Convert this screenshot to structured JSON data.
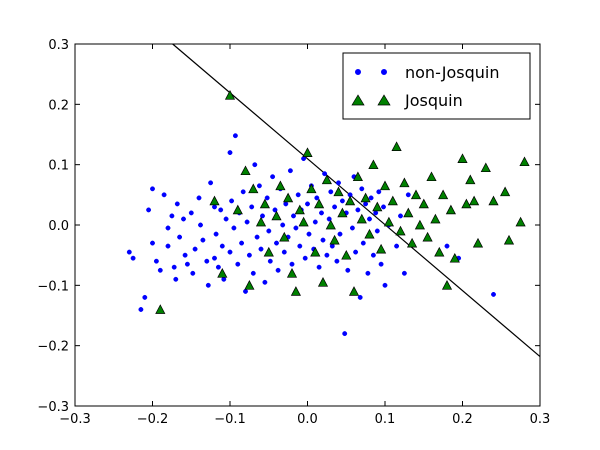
{
  "chart_data": {
    "type": "scatter",
    "xlim": [
      -0.3,
      0.3
    ],
    "ylim": [
      -0.3,
      0.3
    ],
    "x_ticks": [
      "−0.3",
      "−0.2",
      "−0.1",
      "0.0",
      "0.1",
      "0.2",
      "0.3"
    ],
    "y_ticks": [
      "−0.3",
      "−0.2",
      "−0.1",
      "0.0",
      "0.1",
      "0.2",
      "0.3"
    ],
    "x_tick_values": [
      -0.3,
      -0.2,
      -0.1,
      0.0,
      0.1,
      0.2,
      0.3
    ],
    "y_tick_values": [
      -0.3,
      -0.2,
      -0.1,
      0.0,
      0.1,
      0.2,
      0.3
    ],
    "grid": false,
    "legend_position": "top-right",
    "decision_boundary": {
      "x": [
        -0.174,
        0.3
      ],
      "y": [
        0.3,
        -0.218
      ],
      "color": "#000000"
    },
    "series": [
      {
        "name": "non-Josquin",
        "marker": "circle",
        "color": "#0000ff",
        "points": [
          [
            -0.23,
            -0.045
          ],
          [
            -0.225,
            -0.055
          ],
          [
            -0.215,
            -0.14
          ],
          [
            -0.21,
            -0.12
          ],
          [
            -0.205,
            0.025
          ],
          [
            -0.2,
            0.06
          ],
          [
            -0.2,
            -0.03
          ],
          [
            -0.195,
            -0.06
          ],
          [
            -0.19,
            -0.075
          ],
          [
            -0.185,
            0.05
          ],
          [
            -0.18,
            -0.035
          ],
          [
            -0.18,
            -0.005
          ],
          [
            -0.175,
            0.015
          ],
          [
            -0.172,
            -0.07
          ],
          [
            -0.17,
            -0.09
          ],
          [
            -0.168,
            0.035
          ],
          [
            -0.165,
            -0.02
          ],
          [
            -0.16,
            0.01
          ],
          [
            -0.158,
            -0.05
          ],
          [
            -0.155,
            -0.065
          ],
          [
            -0.15,
            0.02
          ],
          [
            -0.148,
            -0.08
          ],
          [
            -0.145,
            -0.04
          ],
          [
            -0.14,
            0.045
          ],
          [
            -0.138,
            0.0
          ],
          [
            -0.135,
            -0.025
          ],
          [
            -0.13,
            -0.06
          ],
          [
            -0.128,
            -0.1
          ],
          [
            -0.125,
            0.07
          ],
          [
            -0.12,
            0.03
          ],
          [
            -0.12,
            -0.055
          ],
          [
            -0.118,
            -0.015
          ],
          [
            -0.115,
            -0.07
          ],
          [
            -0.112,
            0.025
          ],
          [
            -0.11,
            -0.035
          ],
          [
            -0.108,
            -0.09
          ],
          [
            -0.105,
            0.01
          ],
          [
            -0.1,
            0.12
          ],
          [
            -0.1,
            -0.045
          ],
          [
            -0.098,
            0.04
          ],
          [
            -0.095,
            -0.005
          ],
          [
            -0.093,
            0.148
          ],
          [
            -0.09,
            -0.065
          ],
          [
            -0.088,
            0.02
          ],
          [
            -0.085,
            -0.03
          ],
          [
            -0.083,
            0.055
          ],
          [
            -0.08,
            -0.11
          ],
          [
            -0.078,
            0.005
          ],
          [
            -0.075,
            -0.05
          ],
          [
            -0.072,
            0.03
          ],
          [
            -0.07,
            -0.08
          ],
          [
            -0.068,
            0.1
          ],
          [
            -0.065,
            -0.02
          ],
          [
            -0.062,
            0.065
          ],
          [
            -0.06,
            -0.04
          ],
          [
            -0.058,
            0.015
          ],
          [
            -0.055,
            -0.095
          ],
          [
            -0.052,
            0.045
          ],
          [
            -0.05,
            -0.01
          ],
          [
            -0.048,
            -0.06
          ],
          [
            -0.045,
            0.08
          ],
          [
            -0.042,
            0.025
          ],
          [
            -0.04,
            -0.03
          ],
          [
            -0.038,
            -0.075
          ],
          [
            -0.035,
            0.06
          ],
          [
            -0.032,
            0.0
          ],
          [
            -0.03,
            -0.045
          ],
          [
            -0.028,
            0.035
          ],
          [
            -0.025,
            -0.02
          ],
          [
            -0.022,
            0.09
          ],
          [
            -0.02,
            -0.065
          ],
          [
            -0.018,
            0.015
          ],
          [
            -0.015,
            -0.005
          ],
          [
            -0.012,
            0.05
          ],
          [
            -0.01,
            -0.035
          ],
          [
            -0.008,
            0.025
          ],
          [
            -0.005,
            0.11
          ],
          [
            -0.003,
            -0.055
          ],
          [
            0.0,
            0.035
          ],
          [
            0.002,
            -0.015
          ],
          [
            0.005,
            0.065
          ],
          [
            0.008,
            -0.04
          ],
          [
            0.01,
            0.005
          ],
          [
            0.012,
            0.045
          ],
          [
            0.015,
            -0.07
          ],
          [
            0.018,
            0.02
          ],
          [
            0.02,
            -0.025
          ],
          [
            0.022,
            0.085
          ],
          [
            0.025,
            -0.05
          ],
          [
            0.028,
            0.01
          ],
          [
            0.03,
            0.055
          ],
          [
            0.032,
            -0.035
          ],
          [
            0.035,
            0.03
          ],
          [
            0.038,
            -0.06
          ],
          [
            0.04,
            0.07
          ],
          [
            0.042,
            -0.015
          ],
          [
            0.045,
            0.04
          ],
          [
            0.048,
            -0.18
          ],
          [
            0.05,
            0.02
          ],
          [
            0.052,
            -0.075
          ],
          [
            0.055,
            0.05
          ],
          [
            0.058,
            -0.005
          ],
          [
            0.06,
            0.08
          ],
          [
            0.062,
            -0.045
          ],
          [
            0.065,
            0.025
          ],
          [
            0.068,
            -0.12
          ],
          [
            0.07,
            0.06
          ],
          [
            0.072,
            -0.03
          ],
          [
            0.075,
            0.035
          ],
          [
            0.078,
            -0.08
          ],
          [
            0.08,
            0.01
          ],
          [
            0.082,
            0.045
          ],
          [
            0.085,
            -0.05
          ],
          [
            0.088,
            0.02
          ],
          [
            0.09,
            -0.01
          ],
          [
            0.092,
            0.055
          ],
          [
            0.095,
            -0.065
          ],
          [
            0.098,
            0.03
          ],
          [
            0.1,
            -0.1
          ],
          [
            0.105,
            0.0
          ],
          [
            0.11,
            0.04
          ],
          [
            0.115,
            -0.035
          ],
          [
            0.12,
            0.015
          ],
          [
            0.125,
            -0.08
          ],
          [
            0.13,
            0.05
          ],
          [
            0.18,
            -0.035
          ],
          [
            0.195,
            -0.055
          ],
          [
            0.24,
            -0.115
          ]
        ]
      },
      {
        "name": "Josquin",
        "marker": "triangle-up",
        "color": "#008000",
        "points": [
          [
            -0.19,
            -0.14
          ],
          [
            -0.1,
            0.215
          ],
          [
            -0.12,
            0.04
          ],
          [
            -0.11,
            -0.08
          ],
          [
            -0.09,
            0.025
          ],
          [
            -0.08,
            0.09
          ],
          [
            -0.075,
            -0.1
          ],
          [
            -0.07,
            0.06
          ],
          [
            -0.06,
            0.005
          ],
          [
            -0.055,
            0.035
          ],
          [
            -0.05,
            -0.045
          ],
          [
            -0.04,
            0.015
          ],
          [
            -0.035,
            0.065
          ],
          [
            -0.03,
            -0.02
          ],
          [
            -0.025,
            0.045
          ],
          [
            -0.02,
            -0.08
          ],
          [
            -0.015,
            -0.11
          ],
          [
            -0.01,
            0.025
          ],
          [
            -0.005,
            0.005
          ],
          [
            0.0,
            0.12
          ],
          [
            0.005,
            0.06
          ],
          [
            0.01,
            -0.045
          ],
          [
            0.015,
            0.035
          ],
          [
            0.02,
            -0.095
          ],
          [
            0.025,
            0.075
          ],
          [
            0.03,
            0.0
          ],
          [
            0.035,
            -0.025
          ],
          [
            0.04,
            0.055
          ],
          [
            0.045,
            0.02
          ],
          [
            0.05,
            -0.05
          ],
          [
            0.055,
            0.04
          ],
          [
            0.06,
            -0.11
          ],
          [
            0.065,
            0.08
          ],
          [
            0.07,
            0.01
          ],
          [
            0.075,
            0.045
          ],
          [
            0.08,
            -0.015
          ],
          [
            0.085,
            0.1
          ],
          [
            0.09,
            0.03
          ],
          [
            0.095,
            -0.04
          ],
          [
            0.1,
            0.065
          ],
          [
            0.105,
            0.005
          ],
          [
            0.11,
            0.04
          ],
          [
            0.115,
            0.13
          ],
          [
            0.12,
            -0.01
          ],
          [
            0.125,
            0.07
          ],
          [
            0.13,
            0.02
          ],
          [
            0.135,
            -0.03
          ],
          [
            0.14,
            0.05
          ],
          [
            0.145,
            0.0
          ],
          [
            0.15,
            0.035
          ],
          [
            0.155,
            -0.02
          ],
          [
            0.16,
            0.08
          ],
          [
            0.165,
            0.01
          ],
          [
            0.17,
            -0.045
          ],
          [
            0.175,
            0.05
          ],
          [
            0.18,
            -0.1
          ],
          [
            0.185,
            0.025
          ],
          [
            0.19,
            -0.055
          ],
          [
            0.2,
            0.11
          ],
          [
            0.205,
            0.035
          ],
          [
            0.21,
            0.075
          ],
          [
            0.215,
            0.04
          ],
          [
            0.22,
            -0.03
          ],
          [
            0.23,
            0.095
          ],
          [
            0.24,
            0.04
          ],
          [
            0.255,
            0.055
          ],
          [
            0.26,
            -0.025
          ],
          [
            0.275,
            0.005
          ],
          [
            0.28,
            0.105
          ]
        ]
      }
    ]
  }
}
